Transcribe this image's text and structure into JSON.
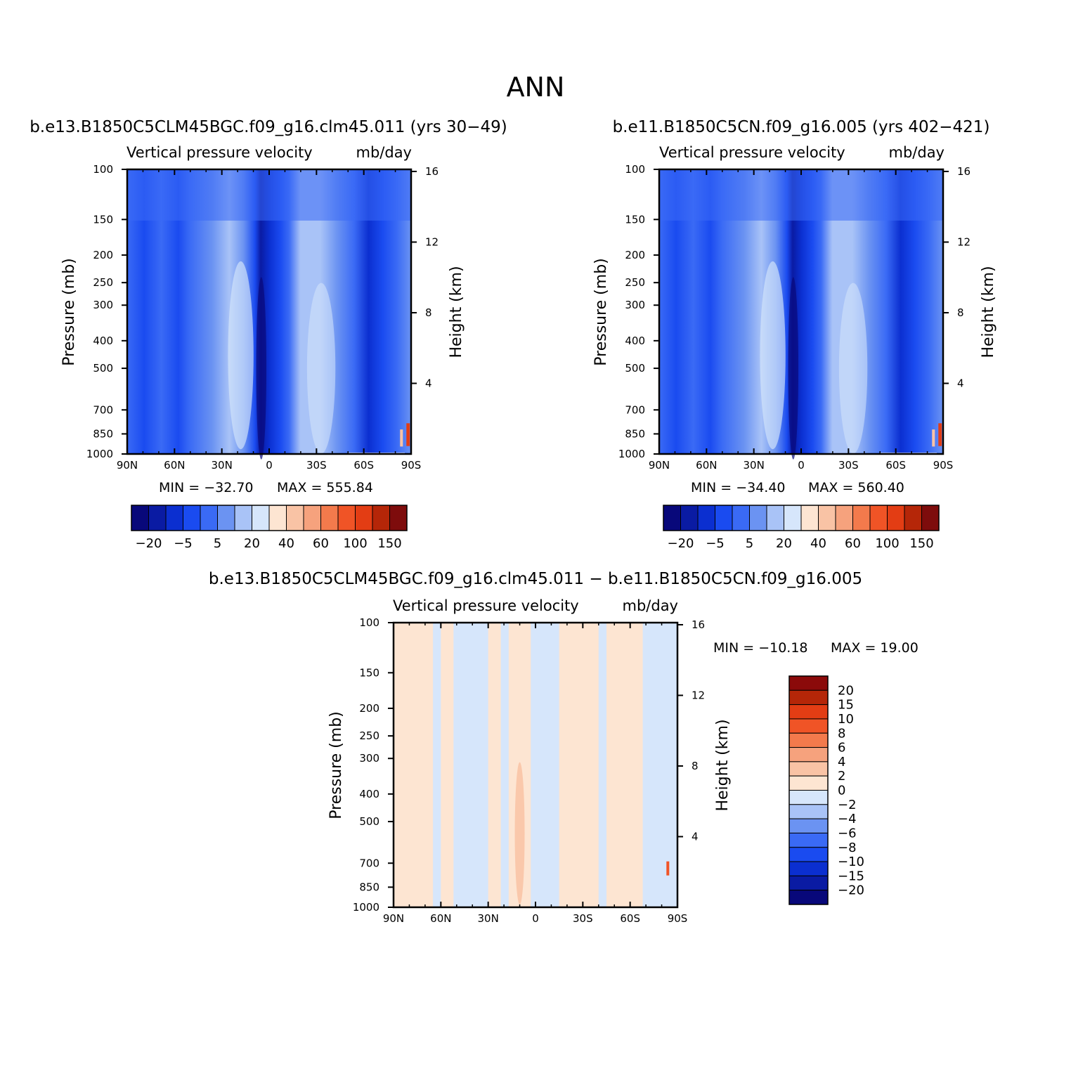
{
  "figure": {
    "title": "ANN"
  },
  "chart_data": [
    {
      "type": "heatmap",
      "title": "b.e13.B1850C5CLM45BGC.f09_g16.clm45.011 (yrs 30-49)",
      "subtitle": "Vertical pressure velocity",
      "units": "mb/day",
      "ylabel": "Pressure (mb)",
      "y2label": "Height (km)",
      "x_ticks": [
        "90N",
        "60N",
        "30N",
        "0",
        "30S",
        "60S",
        "90S"
      ],
      "xlim": [
        90,
        -90
      ],
      "y_ticks": [
        100,
        150,
        200,
        250,
        300,
        400,
        500,
        700,
        850,
        1000
      ],
      "ylim": [
        1000,
        100
      ],
      "y_scale": "log",
      "y2_ticks": [
        16,
        12,
        8,
        4
      ],
      "min_label": "MIN = -32.70",
      "max_label": "MAX = 555.84",
      "colorbar": {
        "orientation": "horizontal",
        "labels": [
          "-20",
          "-5",
          "5",
          "20",
          "40",
          "60",
          "100",
          "150"
        ],
        "colors": [
          "#08087a",
          "#0a1ba3",
          "#0b2fd0",
          "#1a4bf0",
          "#3a6af5",
          "#6b93f2",
          "#a9c3f7",
          "#d6e6fb",
          "#fde5d2",
          "#f9c3a5",
          "#f6a27d",
          "#f37a4c",
          "#f05426",
          "#e33d14",
          "#b52608",
          "#7e0c0c"
        ]
      },
      "field": {
        "description_bands": [
          {
            "lat_from": 90,
            "lat_to": 65,
            "level": "-10 to -15"
          },
          {
            "lat_from": 65,
            "lat_to": 40,
            "level": "-8 to -10"
          },
          {
            "lat_from": 40,
            "lat_to": 15,
            "level": "-2 to -4"
          },
          {
            "lat_from": 15,
            "lat_to": -5,
            "level": "-20 to -30"
          },
          {
            "lat_from": -5,
            "lat_to": -20,
            "level": "-10 to -15"
          },
          {
            "lat_from": -20,
            "lat_to": -50,
            "level": "-2 to -4"
          },
          {
            "lat_from": -50,
            "lat_to": -75,
            "level": "-15 to -20"
          },
          {
            "lat_from": -75,
            "lat_to": -90,
            "level": "-4 to 150"
          }
        ]
      }
    },
    {
      "type": "heatmap",
      "title": "b.e11.B1850C5CN.f09_g16.005 (yrs 402-421)",
      "subtitle": "Vertical pressure velocity",
      "units": "mb/day",
      "ylabel": "Pressure (mb)",
      "y2label": "Height (km)",
      "x_ticks": [
        "90N",
        "60N",
        "30N",
        "0",
        "30S",
        "60S",
        "90S"
      ],
      "xlim": [
        90,
        -90
      ],
      "y_ticks": [
        100,
        150,
        200,
        250,
        300,
        400,
        500,
        700,
        850,
        1000
      ],
      "ylim": [
        1000,
        100
      ],
      "y_scale": "log",
      "y2_ticks": [
        16,
        12,
        8,
        4
      ],
      "min_label": "MIN = -34.40",
      "max_label": "MAX = 560.40",
      "colorbar": {
        "orientation": "horizontal",
        "labels": [
          "-20",
          "-5",
          "5",
          "20",
          "40",
          "60",
          "100",
          "150"
        ],
        "colors": [
          "#08087a",
          "#0a1ba3",
          "#0b2fd0",
          "#1a4bf0",
          "#3a6af5",
          "#6b93f2",
          "#a9c3f7",
          "#d6e6fb",
          "#fde5d2",
          "#f9c3a5",
          "#f6a27d",
          "#f37a4c",
          "#f05426",
          "#e33d14",
          "#b52608",
          "#7e0c0c"
        ]
      }
    },
    {
      "type": "heatmap",
      "title": "b.e13.B1850C5CLM45BGC.f09_g16.clm45.011 - b.e11.B1850C5CN.f09_g16.005",
      "subtitle": "Vertical pressure velocity",
      "units": "mb/day",
      "ylabel": "Pressure (mb)",
      "y2label": "Height (km)",
      "x_ticks": [
        "90N",
        "60N",
        "30N",
        "0",
        "30S",
        "60S",
        "90S"
      ],
      "xlim": [
        90,
        -90
      ],
      "y_ticks": [
        100,
        150,
        200,
        250,
        300,
        400,
        500,
        700,
        850,
        1000
      ],
      "ylim": [
        1000,
        100
      ],
      "y_scale": "log",
      "y2_ticks": [
        16,
        12,
        8,
        4
      ],
      "min_label": "MIN = -10.18",
      "max_label": "MAX =   19.00",
      "colorbar": {
        "orientation": "vertical",
        "labels": [
          "20",
          "15",
          "10",
          "8",
          "6",
          "4",
          "2",
          "0",
          "-2",
          "-4",
          "-6",
          "-8",
          "-10",
          "-15",
          "-20"
        ],
        "colors": [
          "#8b0a0a",
          "#b52608",
          "#e33d14",
          "#f05426",
          "#f37a4c",
          "#f6a27d",
          "#f9c3a5",
          "#fde5d2",
          "#d6e6fb",
          "#a9c3f7",
          "#6b93f2",
          "#3a6af5",
          "#1a4bf0",
          "#0b2fd0",
          "#0a1ba3",
          "#08087a"
        ]
      }
    }
  ]
}
